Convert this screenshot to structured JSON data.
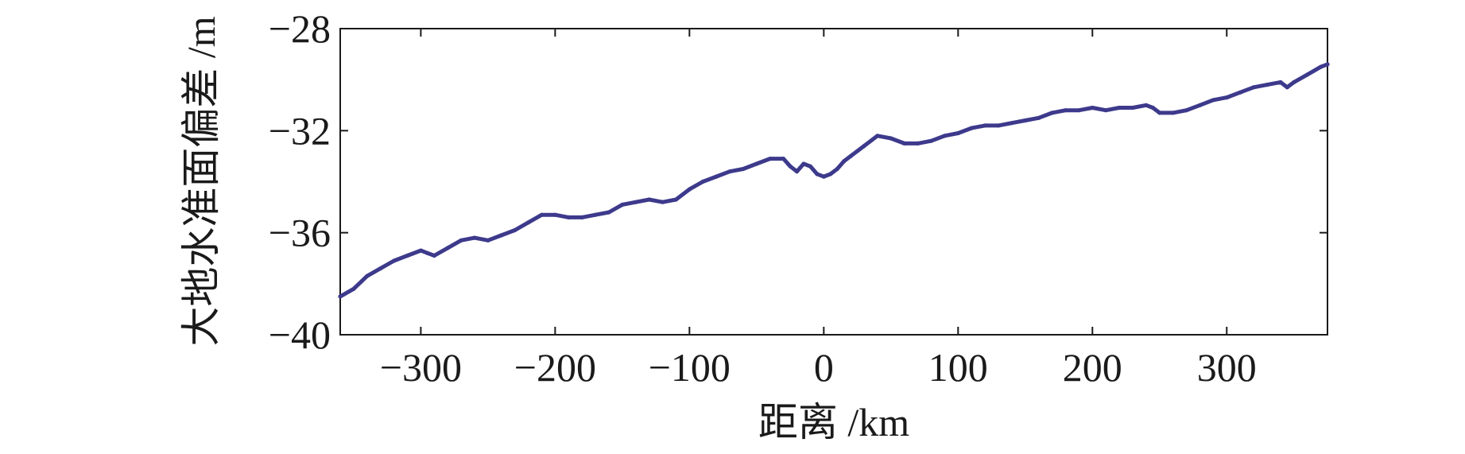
{
  "chart_data": {
    "type": "line",
    "title": "",
    "xlabel": "距离 /km",
    "ylabel": "大地水准面偏差 /m",
    "xlim": [
      -360,
      375
    ],
    "ylim": [
      -40,
      -28
    ],
    "xticks": [
      -300,
      -200,
      -100,
      0,
      100,
      200,
      300
    ],
    "xtick_labels": [
      "−300",
      "−200",
      "−100",
      "0",
      "100",
      "200",
      "300"
    ],
    "yticks": [
      -28,
      -32,
      -36,
      -40
    ],
    "ytick_labels": [
      "−28",
      "−32",
      "−36",
      "−40"
    ],
    "grid": false,
    "legend": "none",
    "series": [
      {
        "color": "#3d3a8c",
        "x": [
          -360,
          -350,
          -340,
          -330,
          -320,
          -310,
          -300,
          -295,
          -290,
          -280,
          -270,
          -260,
          -250,
          -240,
          -230,
          -220,
          -210,
          -200,
          -190,
          -180,
          -170,
          -160,
          -150,
          -140,
          -130,
          -120,
          -110,
          -100,
          -90,
          -80,
          -70,
          -60,
          -50,
          -40,
          -30,
          -25,
          -20,
          -15,
          -10,
          -5,
          0,
          5,
          10,
          15,
          20,
          30,
          40,
          50,
          60,
          70,
          80,
          90,
          100,
          110,
          120,
          130,
          140,
          150,
          160,
          170,
          180,
          190,
          200,
          210,
          220,
          230,
          240,
          245,
          250,
          260,
          270,
          280,
          290,
          300,
          310,
          320,
          330,
          340,
          345,
          350,
          360,
          370,
          375
        ],
        "y": [
          -38.5,
          -38.2,
          -37.7,
          -37.4,
          -37.1,
          -36.9,
          -36.7,
          -36.8,
          -36.9,
          -36.6,
          -36.3,
          -36.2,
          -36.3,
          -36.1,
          -35.9,
          -35.6,
          -35.3,
          -35.3,
          -35.4,
          -35.4,
          -35.3,
          -35.2,
          -34.9,
          -34.8,
          -34.7,
          -34.8,
          -34.7,
          -34.3,
          -34.0,
          -33.8,
          -33.6,
          -33.5,
          -33.3,
          -33.1,
          -33.1,
          -33.4,
          -33.6,
          -33.3,
          -33.4,
          -33.7,
          -33.8,
          -33.7,
          -33.5,
          -33.2,
          -33.0,
          -32.6,
          -32.2,
          -32.3,
          -32.5,
          -32.5,
          -32.4,
          -32.2,
          -32.1,
          -31.9,
          -31.8,
          -31.8,
          -31.7,
          -31.6,
          -31.5,
          -31.3,
          -31.2,
          -31.2,
          -31.1,
          -31.2,
          -31.1,
          -31.1,
          -31.0,
          -31.1,
          -31.3,
          -31.3,
          -31.2,
          -31.0,
          -30.8,
          -30.7,
          -30.5,
          -30.3,
          -30.2,
          -30.1,
          -30.3,
          -30.1,
          -29.8,
          -29.5,
          -29.4
        ]
      }
    ]
  }
}
